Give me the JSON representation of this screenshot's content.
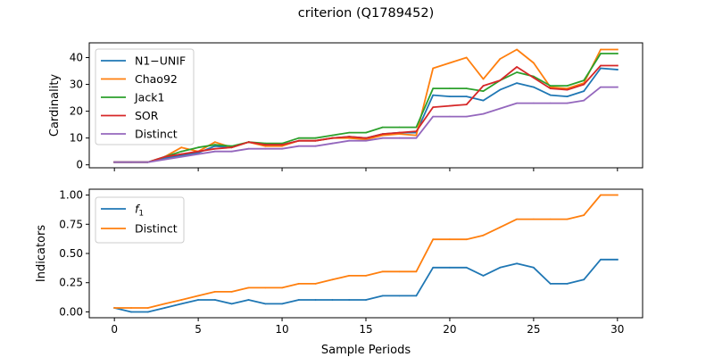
{
  "figure": {
    "suptitle": "criterion (Q1789452)",
    "shared_xlabel": "Sample Periods"
  },
  "chart_data": [
    {
      "type": "line",
      "title": "",
      "xlabel": "",
      "ylabel": "Cardinality",
      "xlim": [
        -1.5,
        31.5
      ],
      "ylim": [
        -1.1,
        45.5
      ],
      "xticks": [
        0,
        5,
        10,
        15,
        20,
        25,
        30
      ],
      "xtick_labels": [
        "",
        "",
        "",
        "",
        "",
        "",
        ""
      ],
      "yticks": [
        0,
        10,
        20,
        30,
        40
      ],
      "ytick_labels": [
        "0",
        "10",
        "20",
        "30",
        "40"
      ],
      "grid": false,
      "legend": "upper-left",
      "x": [
        0,
        1,
        2,
        3,
        4,
        5,
        6,
        7,
        8,
        9,
        10,
        11,
        12,
        13,
        14,
        15,
        16,
        17,
        18,
        19,
        20,
        21,
        22,
        23,
        24,
        25,
        26,
        27,
        28,
        29,
        30
      ],
      "series": [
        {
          "name": "N1−UNIF",
          "color": "#1f77b4",
          "values": [
            1,
            1,
            1,
            2.5,
            3.5,
            4.5,
            7,
            6.5,
            8.5,
            7.5,
            7.5,
            9,
            9,
            10,
            10.5,
            10,
            11.5,
            12,
            12,
            26,
            25.5,
            25.5,
            24,
            28,
            30.5,
            29,
            26,
            25.5,
            27.5,
            36,
            35.5
          ]
        },
        {
          "name": "Chao92",
          "color": "#ff7f0e",
          "values": [
            1,
            1,
            1,
            3,
            6.5,
            5,
            8.5,
            6.5,
            8.5,
            7,
            7,
            9,
            9,
            10,
            10,
            9.5,
            11,
            11.5,
            11,
            36,
            38,
            40,
            32,
            39.5,
            43,
            38,
            29,
            28.5,
            30.5,
            43,
            43
          ]
        },
        {
          "name": "Jack1",
          "color": "#2ca02c",
          "values": [
            1,
            1,
            1,
            3,
            5,
            6.5,
            7.5,
            7,
            8.5,
            8,
            8,
            10,
            10,
            11,
            12,
            12,
            14,
            14,
            14,
            28.5,
            28.5,
            28.5,
            27.5,
            31.5,
            34.5,
            33,
            29.5,
            29.5,
            31.5,
            41.5,
            41.5
          ]
        },
        {
          "name": "SOR",
          "color": "#d62728",
          "values": [
            1,
            1,
            1,
            3,
            4,
            5,
            6,
            6.5,
            8.5,
            7.5,
            7.5,
            9,
            9,
            10,
            10.5,
            10,
            11.5,
            12,
            12.5,
            21.5,
            22,
            22.5,
            29.5,
            31.5,
            36.5,
            32.5,
            28.5,
            28,
            30,
            37,
            37
          ]
        },
        {
          "name": "Distinct",
          "color": "#9467bd",
          "values": [
            1,
            1,
            1,
            2,
            3,
            4,
            5,
            5,
            6,
            6,
            6,
            7,
            7,
            8,
            9,
            9,
            10,
            10,
            10,
            18,
            18,
            18,
            19,
            21,
            23,
            23,
            23,
            23,
            24,
            29,
            29
          ]
        }
      ]
    },
    {
      "type": "line",
      "title": "",
      "xlabel": "Sample Periods",
      "ylabel": "Indicators",
      "xlim": [
        -1.5,
        31.5
      ],
      "ylim": [
        -0.05,
        1.05
      ],
      "xticks": [
        0,
        5,
        10,
        15,
        20,
        25,
        30
      ],
      "xtick_labels": [
        "0",
        "5",
        "10",
        "15",
        "20",
        "25",
        "30"
      ],
      "yticks": [
        0.0,
        0.25,
        0.5,
        0.75,
        1.0
      ],
      "ytick_labels": [
        "0.00",
        "0.25",
        "0.50",
        "0.75",
        "1.00"
      ],
      "grid": false,
      "legend": "upper-left",
      "x": [
        0,
        1,
        2,
        3,
        4,
        5,
        6,
        7,
        8,
        9,
        10,
        11,
        12,
        13,
        14,
        15,
        16,
        17,
        18,
        19,
        20,
        21,
        22,
        23,
        24,
        25,
        26,
        27,
        28,
        29,
        30
      ],
      "series": [
        {
          "name": "f1",
          "color": "#1f77b4",
          "values": [
            0.034,
            0.0,
            0.0,
            0.034,
            0.069,
            0.103,
            0.103,
            0.069,
            0.103,
            0.069,
            0.069,
            0.103,
            0.103,
            0.103,
            0.103,
            0.103,
            0.138,
            0.138,
            0.138,
            0.379,
            0.379,
            0.379,
            0.31,
            0.379,
            0.414,
            0.379,
            0.241,
            0.241,
            0.276,
            0.448,
            0.448
          ]
        },
        {
          "name": "Distinct",
          "color": "#ff7f0e",
          "values": [
            0.034,
            0.034,
            0.034,
            0.069,
            0.103,
            0.138,
            0.172,
            0.172,
            0.207,
            0.207,
            0.207,
            0.241,
            0.241,
            0.276,
            0.31,
            0.31,
            0.345,
            0.345,
            0.345,
            0.621,
            0.621,
            0.621,
            0.655,
            0.724,
            0.793,
            0.793,
            0.793,
            0.793,
            0.828,
            1.0,
            1.0
          ]
        }
      ]
    }
  ]
}
